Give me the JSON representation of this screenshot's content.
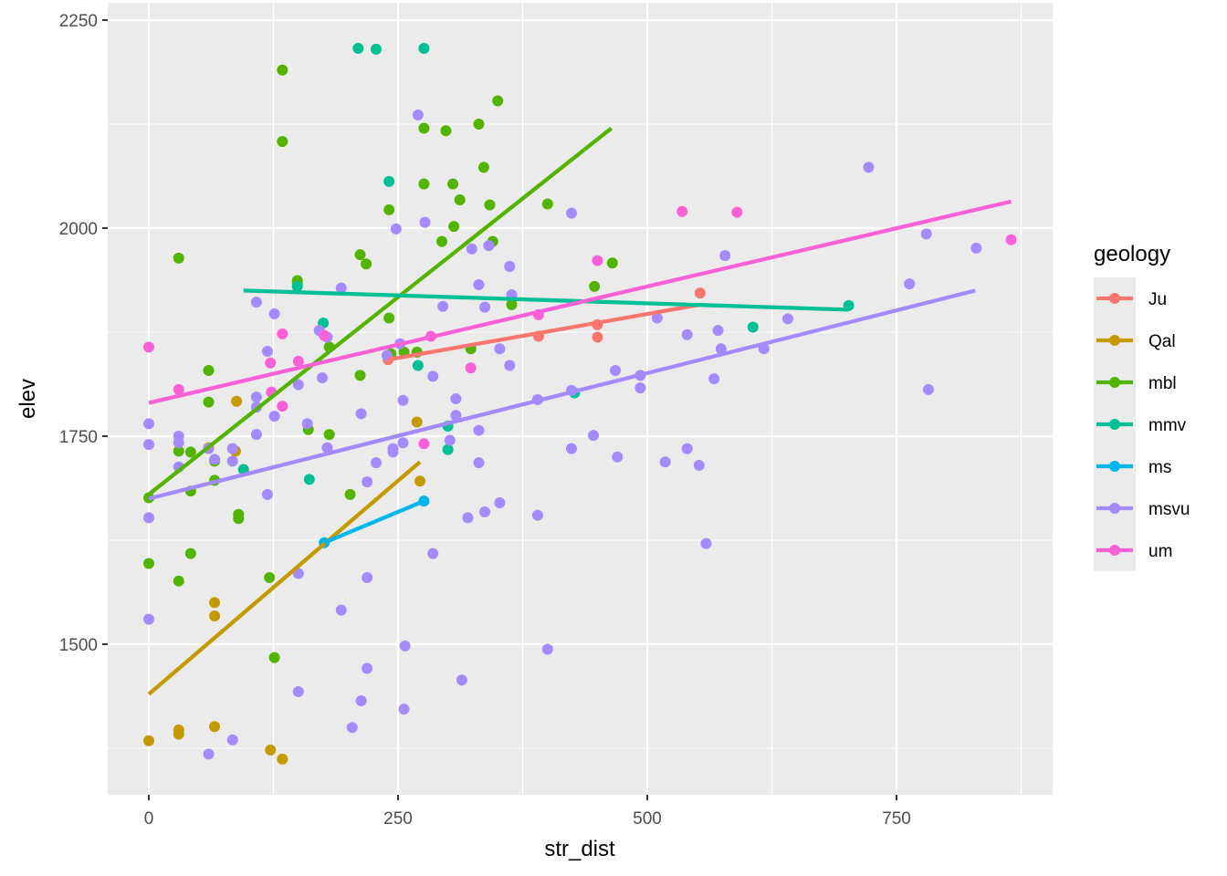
{
  "chart_data": {
    "type": "scatter",
    "title": "",
    "xlabel": "str_dist",
    "ylabel": "elev",
    "xlim": [
      -49,
      1081
    ],
    "ylim": [
      1332,
      2270
    ],
    "x_ticks": [
      0,
      250,
      500,
      750
    ],
    "x_tick_labels": [
      "0",
      "250",
      "500",
      "750"
    ],
    "x_minor": [
      125,
      375,
      625,
      875
    ],
    "y_ticks": [
      1500,
      1750,
      2000,
      2250
    ],
    "y_tick_labels": [
      "1500",
      "1750",
      "2000",
      "2250"
    ],
    "y_minor": [
      1375,
      1625,
      1875,
      2125
    ],
    "grid": true,
    "panel_background": "#EBEBEB",
    "legend": {
      "title": "geology",
      "position": "right"
    },
    "series": [
      {
        "name": "Ju",
        "color": "#F8766D",
        "points": [
          [
            553,
            1922
          ],
          [
            450,
            1884
          ],
          [
            450,
            1869
          ],
          [
            391,
            1870
          ],
          [
            240,
            1842
          ]
        ],
        "fit": [
          [
            240,
            1842
          ],
          [
            553,
            1908
          ]
        ]
      },
      {
        "name": "Qal",
        "color": "#C49A00",
        "points": [
          [
            88,
            1792
          ],
          [
            60,
            1736
          ],
          [
            87,
            1732
          ],
          [
            66,
            1550
          ],
          [
            66,
            1534
          ],
          [
            0,
            1384
          ],
          [
            30,
            1397
          ],
          [
            30,
            1392
          ],
          [
            66,
            1401
          ],
          [
            122,
            1373
          ],
          [
            134,
            1362
          ],
          [
            269,
            1767
          ],
          [
            272,
            1696
          ]
        ],
        "fit": [
          [
            0,
            1440
          ],
          [
            272,
            1719
          ]
        ]
      },
      {
        "name": "mbl",
        "color": "#53B400",
        "points": [
          [
            134,
            2190
          ],
          [
            134,
            2104
          ],
          [
            30,
            1964
          ],
          [
            149,
            1937
          ],
          [
            149,
            1934
          ],
          [
            30,
            1732
          ],
          [
            42,
            1731
          ],
          [
            60,
            1791
          ],
          [
            60,
            1829
          ],
          [
            66,
            1720
          ],
          [
            66,
            1697
          ],
          [
            42,
            1684
          ],
          [
            90,
            1656
          ],
          [
            90,
            1651
          ],
          [
            42,
            1609
          ],
          [
            0,
            1676
          ],
          [
            0,
            1597
          ],
          [
            30,
            1576
          ],
          [
            121,
            1580
          ],
          [
            126,
            1484
          ],
          [
            160,
            1758
          ],
          [
            181,
            1752
          ],
          [
            181,
            1857
          ],
          [
            212,
            1823
          ],
          [
            212,
            1968
          ],
          [
            218,
            1957
          ],
          [
            241,
            2022
          ],
          [
            241,
            1892
          ],
          [
            243,
            1849
          ],
          [
            256,
            1851
          ],
          [
            269,
            1851
          ],
          [
            276,
            2053
          ],
          [
            276,
            2120
          ],
          [
            298,
            2117
          ],
          [
            294,
            1984
          ],
          [
            305,
            2053
          ],
          [
            306,
            2002
          ],
          [
            312,
            2034
          ],
          [
            323,
            1855
          ],
          [
            331,
            2125
          ],
          [
            336,
            2073
          ],
          [
            342,
            2028
          ],
          [
            345,
            1984
          ],
          [
            350,
            2153
          ],
          [
            364,
            1908
          ],
          [
            400,
            2029
          ],
          [
            447,
            1930
          ],
          [
            465,
            1958
          ],
          [
            202,
            1680
          ]
        ],
        "fit": [
          [
            0,
            1680
          ],
          [
            464,
            2120
          ]
        ]
      },
      {
        "name": "mmv",
        "color": "#00C094",
        "points": [
          [
            210,
            2216
          ],
          [
            228,
            2215
          ],
          [
            276,
            2216
          ],
          [
            241,
            2056
          ],
          [
            149,
            1930
          ],
          [
            175,
            1886
          ],
          [
            95,
            1710
          ],
          [
            161,
            1698
          ],
          [
            270,
            1835
          ],
          [
            300,
            1762
          ],
          [
            300,
            1734
          ],
          [
            427,
            1802
          ],
          [
            606,
            1881
          ],
          [
            702,
            1907
          ]
        ],
        "fit": [
          [
            95,
            1925
          ],
          [
            702,
            1902
          ]
        ]
      },
      {
        "name": "ms",
        "color": "#00B6EB",
        "points": [
          [
            176,
            1622
          ],
          [
            276,
            1672
          ]
        ],
        "fit": [
          [
            176,
            1622
          ],
          [
            276,
            1672
          ]
        ]
      },
      {
        "name": "msvu",
        "color": "#A58AFF",
        "points": [
          [
            0,
            1765
          ],
          [
            0,
            1740
          ],
          [
            0,
            1652
          ],
          [
            0,
            1530
          ],
          [
            30,
            1750
          ],
          [
            30,
            1742
          ],
          [
            30,
            1713
          ],
          [
            60,
            1735
          ],
          [
            66,
            1722
          ],
          [
            84,
            1735
          ],
          [
            84,
            1720
          ],
          [
            60,
            1368
          ],
          [
            84,
            1385
          ],
          [
            108,
            1911
          ],
          [
            108,
            1797
          ],
          [
            108,
            1785
          ],
          [
            108,
            1752
          ],
          [
            119,
            1852
          ],
          [
            119,
            1680
          ],
          [
            126,
            1774
          ],
          [
            126,
            1897
          ],
          [
            150,
            1812
          ],
          [
            150,
            1585
          ],
          [
            150,
            1443
          ],
          [
            159,
            1765
          ],
          [
            171,
            1877
          ],
          [
            179,
            1869
          ],
          [
            174,
            1820
          ],
          [
            179,
            1736
          ],
          [
            193,
            1928
          ],
          [
            193,
            1541
          ],
          [
            204,
            1400
          ],
          [
            213,
            1777
          ],
          [
            213,
            1432
          ],
          [
            219,
            1695
          ],
          [
            219,
            1580
          ],
          [
            219,
            1471
          ],
          [
            228,
            1718
          ],
          [
            239,
            1847
          ],
          [
            245,
            1735
          ],
          [
            245,
            1731
          ],
          [
            248,
            1999
          ],
          [
            252,
            1861
          ],
          [
            255,
            1793
          ],
          [
            255,
            1742
          ],
          [
            256,
            1422
          ],
          [
            257,
            1498
          ],
          [
            270,
            2136
          ],
          [
            277,
            2007
          ],
          [
            285,
            1822
          ],
          [
            285,
            1609
          ],
          [
            295,
            1906
          ],
          [
            302,
            1745
          ],
          [
            308,
            1795
          ],
          [
            308,
            1775
          ],
          [
            314,
            1457
          ],
          [
            320,
            1652
          ],
          [
            324,
            1975
          ],
          [
            331,
            1932
          ],
          [
            331,
            1757
          ],
          [
            331,
            1718
          ],
          [
            337,
            1905
          ],
          [
            337,
            1659
          ],
          [
            341,
            1979
          ],
          [
            352,
            1855
          ],
          [
            352,
            1670
          ],
          [
            362,
            1954
          ],
          [
            362,
            1835
          ],
          [
            364,
            1920
          ],
          [
            390,
            1794
          ],
          [
            390,
            1655
          ],
          [
            400,
            1494
          ],
          [
            424,
            2018
          ],
          [
            424,
            1805
          ],
          [
            424,
            1735
          ],
          [
            446,
            1751
          ],
          [
            468,
            1829
          ],
          [
            470,
            1725
          ],
          [
            493,
            1808
          ],
          [
            493,
            1823
          ],
          [
            510,
            1892
          ],
          [
            518,
            1719
          ],
          [
            540,
            1872
          ],
          [
            540,
            1735
          ],
          [
            552,
            1715
          ],
          [
            559,
            1621
          ],
          [
            567,
            1819
          ],
          [
            571,
            1877
          ],
          [
            574,
            1855
          ],
          [
            578,
            1967
          ],
          [
            617,
            1855
          ],
          [
            641,
            1891
          ],
          [
            722,
            2073
          ],
          [
            763,
            1933
          ],
          [
            780,
            1993
          ],
          [
            782,
            1806
          ],
          [
            830,
            1976
          ]
        ],
        "fit": [
          [
            0,
            1675
          ],
          [
            829,
            1925
          ]
        ]
      },
      {
        "name": "um",
        "color": "#FB61D7",
        "points": [
          [
            0,
            1857
          ],
          [
            30,
            1806
          ],
          [
            122,
            1838
          ],
          [
            123,
            1803
          ],
          [
            134,
            1873
          ],
          [
            134,
            1786
          ],
          [
            150,
            1840
          ],
          [
            176,
            1871
          ],
          [
            283,
            1870
          ],
          [
            276,
            1741
          ],
          [
            323,
            1832
          ],
          [
            391,
            1896
          ],
          [
            450,
            1961
          ],
          [
            535,
            2020
          ],
          [
            590,
            2019
          ],
          [
            865,
            1986
          ]
        ],
        "fit": [
          [
            0,
            1790
          ],
          [
            865,
            2032
          ]
        ]
      }
    ]
  }
}
